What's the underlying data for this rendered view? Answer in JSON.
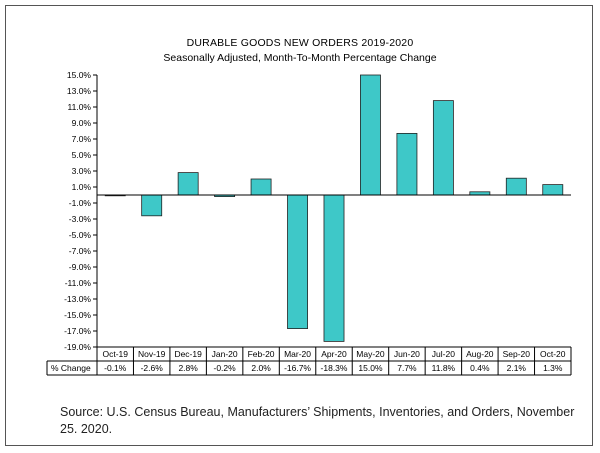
{
  "chart_data": {
    "type": "bar",
    "title": "DURABLE GOODS NEW ORDERS 2019-2020",
    "subtitle": "Seasonally Adjusted,  Month-To-Month Percentage Change",
    "categories": [
      "Oct-19",
      "Nov-19",
      "Dec-19",
      "Jan-20",
      "Feb-20",
      "Mar-20",
      "Apr-20",
      "May-20",
      "Jun-20",
      "Jul-20",
      "Aug-20",
      "Sep-20",
      "Oct-20"
    ],
    "series": [
      {
        "values": [
          -0.1,
          -2.6,
          2.8,
          -0.2,
          2.0,
          -16.7,
          -18.3,
          15.0,
          7.7,
          11.8,
          0.4,
          2.1,
          1.3
        ]
      }
    ],
    "table_row_label": "% Change",
    "table_values": [
      "-0.1%",
      "-2.6%",
      "2.8%",
      "-0.2%",
      "2.0%",
      "-16.7%",
      "-18.3%",
      "15.0%",
      "7.7%",
      "11.8%",
      "0.4%",
      "2.1%",
      "1.3%"
    ],
    "ylim": [
      -19,
      15
    ],
    "yticks": [
      15,
      13,
      11,
      9,
      7,
      5,
      3,
      1,
      -1,
      -3,
      -5,
      -7,
      -9,
      -11,
      -13,
      -15,
      -17,
      -19
    ],
    "ytick_labels": [
      "15.0%",
      "13.0%",
      "11.0%",
      "9.0%",
      "7.0%",
      "5.0%",
      "3.0%",
      "1.0%",
      "-1.0%",
      "-3.0%",
      "-5.0%",
      "-7.0%",
      "-9.0%",
      "-11.0%",
      "-13.0%",
      "-15.0%",
      "-17.0%",
      "-19.0%"
    ],
    "bar_color": "#3ec8c8",
    "grid": false,
    "legend": "none"
  },
  "source": "Source: U.S. Census Bureau, Manufacturers’ Shipments, Inventories, and Orders, November 25. 2020."
}
